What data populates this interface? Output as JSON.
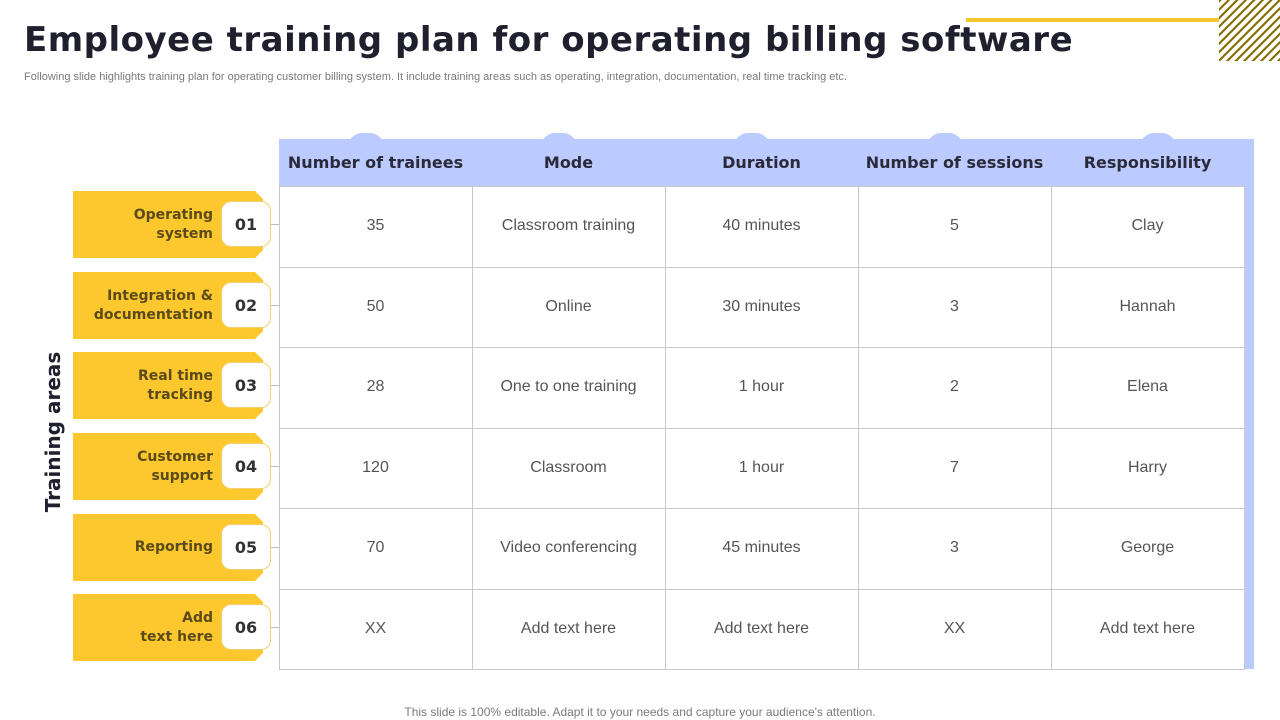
{
  "title": "Employee training plan for operating billing software",
  "subtitle": "Following slide highlights training plan for operating customer billing system. It include training areas such as operating, integration, documentation, real time tracking etc.",
  "side_label": "Training areas",
  "columns": [
    "Number of trainees",
    "Mode",
    "Duration",
    "Number of sessions",
    "Responsibility"
  ],
  "areas": [
    {
      "num": "01",
      "label": "Operating\nsystem"
    },
    {
      "num": "02",
      "label": "Integration &\ndocumentation"
    },
    {
      "num": "03",
      "label": "Real time\ntracking"
    },
    {
      "num": "04",
      "label": "Customer\nsupport"
    },
    {
      "num": "05",
      "label": "Reporting"
    },
    {
      "num": "06",
      "label": "Add\ntext here"
    }
  ],
  "rows": [
    [
      "35",
      "Classroom training",
      "40 minutes",
      "5",
      "Clay"
    ],
    [
      "50",
      "Online",
      "30 minutes",
      "3",
      "Hannah"
    ],
    [
      "28",
      "One to one training",
      "1 hour",
      "2",
      "Elena"
    ],
    [
      "120",
      "Classroom",
      "1 hour",
      "7",
      "Harry"
    ],
    [
      "70",
      "Video conferencing",
      "45 minutes",
      "3",
      "George"
    ],
    [
      "XX",
      "Add text here",
      "Add text here",
      "XX",
      "Add text here"
    ]
  ],
  "footer": "This slide is 100% editable. Adapt it to your needs and capture your audience's attention.",
  "colors": {
    "accent_yellow": "#fcc82d",
    "header_blue": "#bccbff"
  }
}
